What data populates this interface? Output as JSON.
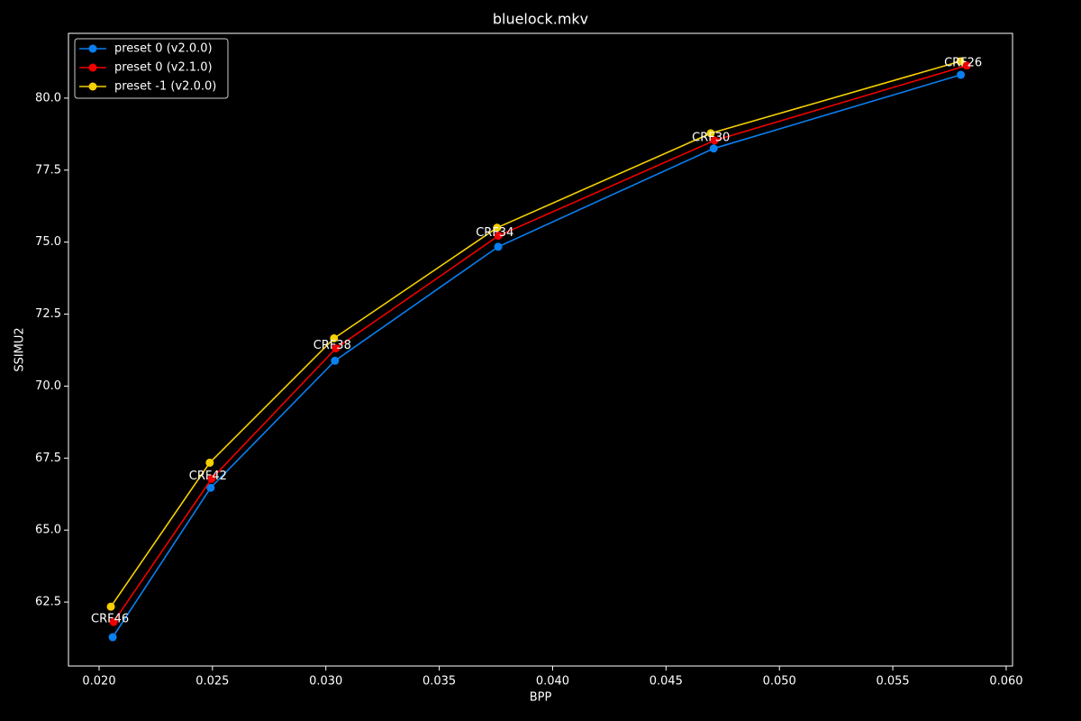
{
  "chart_data": {
    "type": "line",
    "title": "bluelock.mkv",
    "x_label": "BPP",
    "y_label": "SSIMU2",
    "xlim": [
      0.01865,
      0.06028
    ],
    "ylim": [
      60.28,
      82.25
    ],
    "xticks": [
      {
        "value": 0.02,
        "label": "0.020"
      },
      {
        "value": 0.025,
        "label": "0.025"
      },
      {
        "value": 0.03,
        "label": "0.030"
      },
      {
        "value": 0.035,
        "label": "0.035"
      },
      {
        "value": 0.04,
        "label": "0.040"
      },
      {
        "value": 0.045,
        "label": "0.045"
      },
      {
        "value": 0.05,
        "label": "0.050"
      },
      {
        "value": 0.055,
        "label": "0.055"
      },
      {
        "value": 0.06,
        "label": "0.060"
      }
    ],
    "yticks": [
      {
        "value": 62.5,
        "label": "62.5"
      },
      {
        "value": 65,
        "label": "65.0"
      },
      {
        "value": 67.5,
        "label": "67.5"
      },
      {
        "value": 70,
        "label": "70.0"
      },
      {
        "value": 72.5,
        "label": "72.5"
      },
      {
        "value": 75,
        "label": "75.0"
      },
      {
        "value": 77.5,
        "label": "77.5"
      },
      {
        "value": 80,
        "label": "80.0"
      }
    ],
    "grid": false,
    "legend": "upper-left",
    "series": [
      {
        "name": "preset 0 (v2.0.0)",
        "color": "#0a7ff0",
        "x": [
          0.0206,
          0.02492,
          0.0304,
          0.0376,
          0.0471,
          0.058
        ],
        "values": [
          61.28,
          66.47,
          70.88,
          74.84,
          78.25,
          80.81
        ]
      },
      {
        "name": "preset 0 (v2.1.0)",
        "color": "#f00000",
        "x": [
          0.02064,
          0.02496,
          0.03044,
          0.03761,
          0.04714,
          0.05826
        ],
        "values": [
          61.81,
          66.78,
          71.31,
          75.22,
          78.53,
          81.13
        ]
      },
      {
        "name": "preset -1 (v2.0.0)",
        "color": "#f5d000",
        "x": [
          0.02052,
          0.02488,
          0.03036,
          0.03755,
          0.04697,
          0.05798
        ],
        "values": [
          62.34,
          67.34,
          71.66,
          75.5,
          78.78,
          81.28
        ]
      }
    ],
    "annotations": [
      "CRF46",
      "CRF42",
      "CRF38",
      "CRF34",
      "CRF30",
      "CRF26"
    ]
  }
}
